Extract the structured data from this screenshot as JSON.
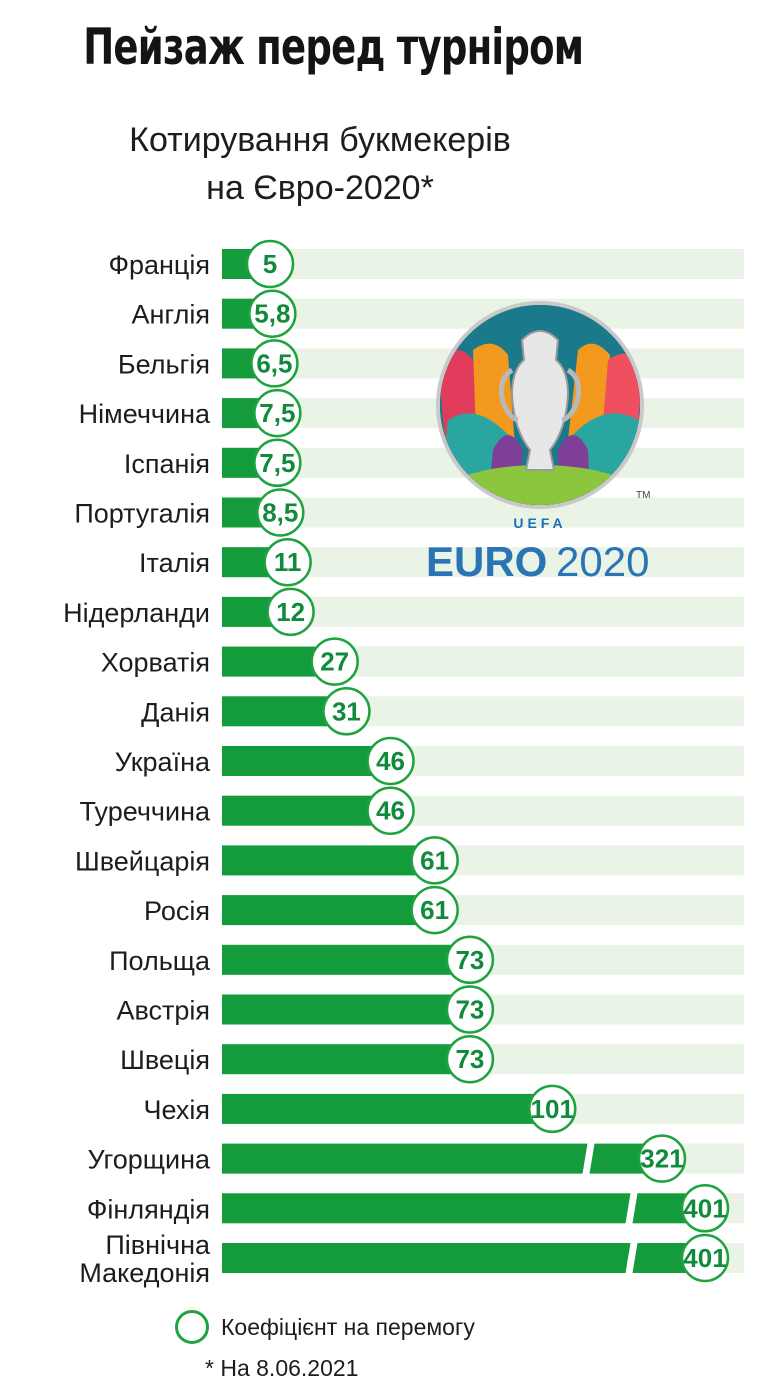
{
  "header": {
    "title": "Пейзаж перед турніром",
    "subtitle_line1": "Котирування букмекерів",
    "subtitle_line2": "на Євро-2020*"
  },
  "logo": {
    "brand_line": "UEFA",
    "brand_main": "EURO",
    "brand_year": "2020",
    "trademark": "TM"
  },
  "legend": {
    "label": "Коефіцієнт на перемогу",
    "swatch_color": "#1ea33f"
  },
  "footnote": "* На 8.06.2021",
  "colors": {
    "bar": "#149b3b",
    "track": "#e9f4e6",
    "circle_border": "#1ea33f",
    "value_text": "#118a3c"
  },
  "chart_data": {
    "type": "bar",
    "orientation": "horizontal",
    "title": "Пейзаж перед турніром",
    "subtitle": "Котирування букмекерів на Євро-2020*",
    "categories": [
      "Франція",
      "Англія",
      "Бельгія",
      "Німеччина",
      "Іспанія",
      "Португалія",
      "Італія",
      "Нідерланди",
      "Хорватія",
      "Данія",
      "Україна",
      "Туреччина",
      "Швейцарія",
      "Росія",
      "Польща",
      "Австрія",
      "Швеція",
      "Чехія",
      "Угорщина",
      "Фінляндія",
      "Північна Македонія"
    ],
    "values": [
      5,
      5.8,
      6.5,
      7.5,
      7.5,
      8.5,
      11,
      12,
      27,
      31,
      46,
      46,
      61,
      61,
      73,
      73,
      73,
      101,
      321,
      401,
      401
    ],
    "value_labels": [
      "5",
      "5,8",
      "6,5",
      "7,5",
      "7,5",
      "8,5",
      "11",
      "12",
      "27",
      "31",
      "46",
      "46",
      "61",
      "61",
      "73",
      "73",
      "73",
      "101",
      "321",
      "401",
      "401"
    ],
    "axis_breaks": [
      "Угорщина",
      "Фінляндія",
      "Північна Македонія"
    ],
    "grid": false,
    "legend": "bottom-left"
  }
}
